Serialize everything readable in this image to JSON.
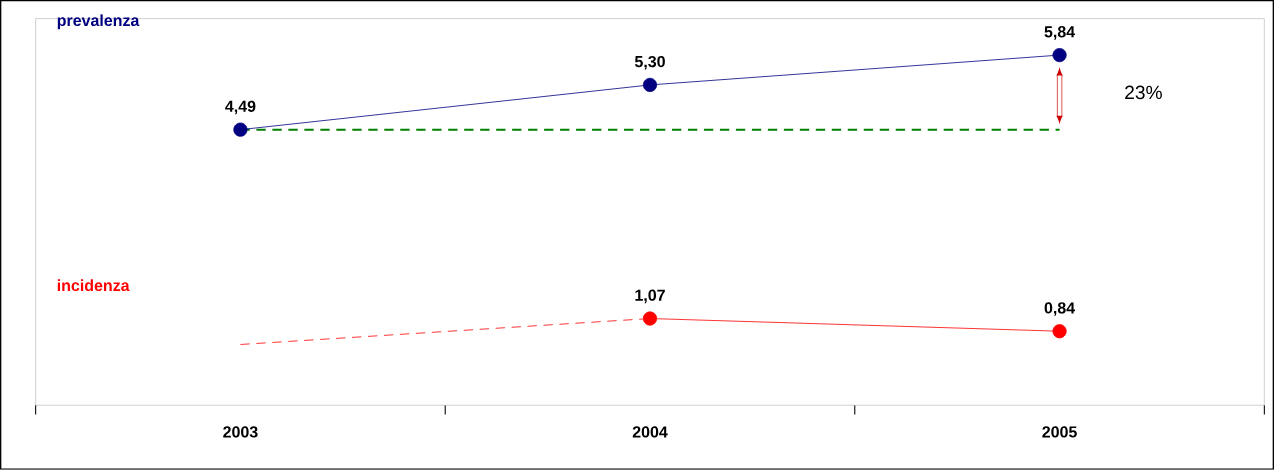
{
  "chart_data": {
    "type": "line",
    "categories": [
      "2003",
      "2004",
      "2005"
    ],
    "series": [
      {
        "name": "prevalenza",
        "color": "#000080",
        "values": [
          4.49,
          5.3,
          5.84
        ],
        "value_labels": [
          "4,49",
          "5,30",
          "5,84"
        ],
        "marker": "circle",
        "line_style": "solid"
      },
      {
        "name": "incidenza",
        "color": "#ff0000",
        "values": [
          null,
          1.07,
          0.84
        ],
        "value_labels": [
          null,
          "1,07",
          "0,84"
        ],
        "marker": "circle",
        "line_style": "solid"
      },
      {
        "color": "#ff0000",
        "values": [
          0.6,
          1.07,
          null
        ],
        "marker": "none",
        "line_style": "dashed"
      }
    ],
    "ref_lines": [
      {
        "axis": "y",
        "value": 4.49,
        "color": "#008000",
        "line_style": "dashed"
      }
    ],
    "annotations": [
      "23%"
    ],
    "ylim": [
      -0.5,
      6.5
    ],
    "tick_labels": "x"
  }
}
